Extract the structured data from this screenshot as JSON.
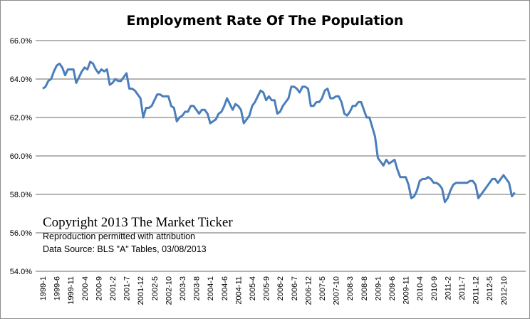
{
  "chart_data": {
    "type": "line",
    "title": "Employment Rate Of The Population",
    "xlabel": "",
    "ylabel": "",
    "ylim": [
      54,
      66
    ],
    "yticks": [
      "54.0%",
      "56.0%",
      "58.0%",
      "60.0%",
      "62.0%",
      "64.0%",
      "66.0%"
    ],
    "ytick_values": [
      54,
      56,
      58,
      60,
      62,
      64,
      66
    ],
    "grid": true,
    "legend": "none",
    "line_color": "#4a7ebb",
    "x_start": "1999-1",
    "x_tick_every_months": 5,
    "xticks": [
      "1999-1",
      "1999-6",
      "1999-11",
      "2000-4",
      "2000-9",
      "2001-2",
      "2001-7",
      "2001-12",
      "2002-5",
      "2002-10",
      "2003-3",
      "2003-8",
      "2004-1",
      "2004-6",
      "2004-11",
      "2005-4",
      "2005-9",
      "2006-2",
      "2006-7",
      "2006-12",
      "2007-5",
      "2007-10",
      "2008-3",
      "2008-8",
      "2009-1",
      "2009-6",
      "2009-11",
      "2010-4",
      "2010-9",
      "2011-2",
      "2011-7",
      "2011-12",
      "2012-5",
      "2012-10"
    ],
    "series": [
      {
        "name": "Employment Rate",
        "values": [
          63.5,
          63.6,
          63.9,
          64.0,
          64.4,
          64.7,
          64.8,
          64.6,
          64.2,
          64.5,
          64.5,
          64.5,
          63.8,
          64.1,
          64.4,
          64.6,
          64.5,
          64.9,
          64.8,
          64.5,
          64.3,
          64.5,
          64.4,
          64.5,
          63.7,
          63.8,
          64.0,
          63.9,
          63.9,
          64.1,
          64.3,
          63.5,
          63.5,
          63.4,
          63.2,
          63.0,
          62.0,
          62.5,
          62.5,
          62.6,
          62.9,
          63.2,
          63.2,
          63.1,
          63.1,
          63.1,
          62.6,
          62.5,
          61.8,
          62.0,
          62.1,
          62.3,
          62.3,
          62.6,
          62.6,
          62.4,
          62.2,
          62.4,
          62.4,
          62.2,
          61.7,
          61.8,
          61.9,
          62.2,
          62.3,
          62.6,
          63.0,
          62.7,
          62.4,
          62.7,
          62.6,
          62.4,
          61.7,
          61.9,
          62.1,
          62.6,
          62.8,
          63.1,
          63.4,
          63.3,
          62.9,
          63.1,
          62.9,
          62.9,
          62.2,
          62.3,
          62.6,
          62.8,
          63.0,
          63.6,
          63.6,
          63.5,
          63.3,
          63.6,
          63.6,
          63.5,
          62.6,
          62.6,
          62.8,
          62.8,
          63.0,
          63.4,
          63.5,
          63.0,
          63.0,
          63.1,
          63.1,
          62.8,
          62.2,
          62.1,
          62.3,
          62.6,
          62.6,
          62.8,
          62.8,
          62.4,
          62.0,
          62.0,
          61.5,
          61.0,
          59.9,
          59.7,
          59.5,
          59.8,
          59.6,
          59.7,
          59.8,
          59.3,
          58.9,
          58.9,
          58.9,
          58.5,
          57.8,
          57.9,
          58.2,
          58.7,
          58.8,
          58.8,
          58.9,
          58.8,
          58.6,
          58.6,
          58.5,
          58.3,
          57.6,
          57.8,
          58.2,
          58.5,
          58.6,
          58.6,
          58.6,
          58.6,
          58.6,
          58.7,
          58.7,
          58.5,
          57.8,
          58.0,
          58.2,
          58.4,
          58.6,
          58.8,
          58.8,
          58.6,
          58.8,
          59.0,
          58.8,
          58.6,
          57.9,
          58.1
        ]
      }
    ],
    "annotations": {
      "copyright": "Copyright  2013 The Market Ticker",
      "reproduction": "Reproduction permitted with attribution",
      "source": "Data Source: BLS \"A\" Tables, 03/08/2013"
    }
  }
}
